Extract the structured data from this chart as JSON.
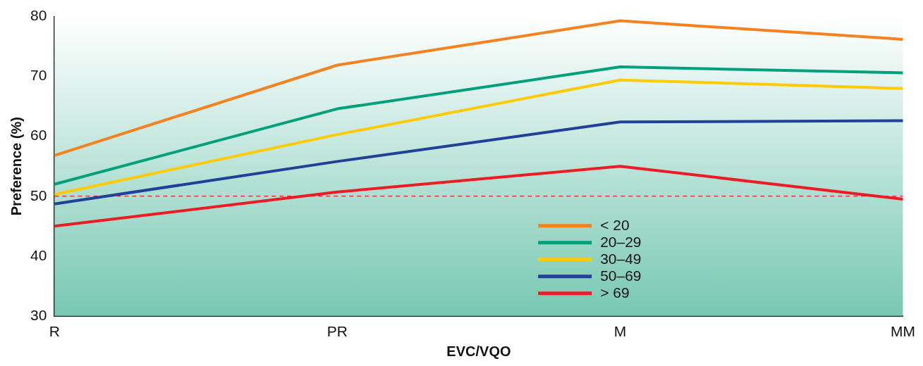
{
  "chart_data": {
    "type": "line",
    "xlabel": "EVC/VQO",
    "ylabel": "Preference (%)",
    "categories": [
      "R",
      "PR",
      "M",
      "MM"
    ],
    "series": [
      {
        "name": "< 20",
        "color": "#f5821f",
        "values": [
          56.8,
          71.9,
          79.3,
          76.2
        ]
      },
      {
        "name": "20–29",
        "color": "#00a07a",
        "values": [
          52.0,
          64.6,
          71.6,
          70.6
        ]
      },
      {
        "name": "30–49",
        "color": "#ffcb05",
        "values": [
          50.3,
          60.3,
          69.4,
          68.0
        ]
      },
      {
        "name": "50–69",
        "color": "#21409a",
        "values": [
          48.7,
          55.8,
          62.4,
          62.6
        ]
      },
      {
        "name": "> 69",
        "color": "#ed1c24",
        "values": [
          45.0,
          50.7,
          55.0,
          49.5
        ]
      }
    ],
    "ylim": [
      30,
      80
    ],
    "yticks": [
      30,
      40,
      50,
      60,
      70,
      80
    ],
    "ref_lines": [
      {
        "axis": "y",
        "value": 50,
        "color": "#ed1c24",
        "line_style": "dashed"
      }
    ],
    "grid": false,
    "legend": "bottom right",
    "marker": "none",
    "line_style": "solid"
  }
}
